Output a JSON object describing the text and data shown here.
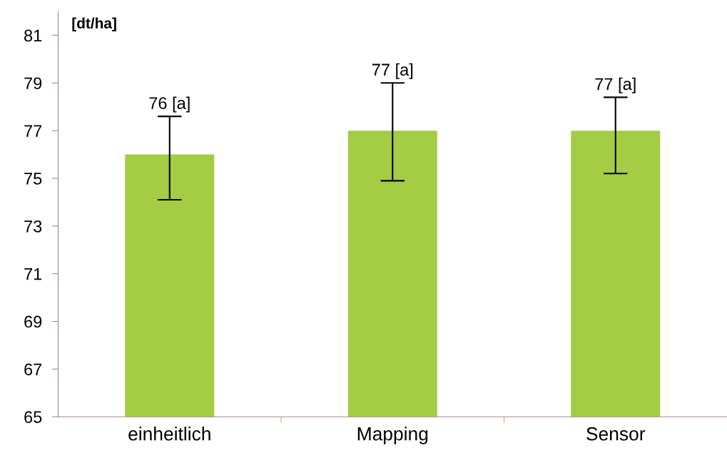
{
  "chart_data": {
    "type": "bar",
    "ylabel": "[dt/ha]",
    "categories": [
      "einheitlich",
      "Mapping",
      "Sensor"
    ],
    "values": [
      76,
      77,
      77
    ],
    "color": "#a4cc44",
    "errors": [
      [
        74.1,
        77.6
      ],
      [
        74.9,
        79.0
      ],
      [
        75.2,
        78.4
      ]
    ],
    "value_labels": [
      "76 [a]",
      "77 [a]",
      "77 [a]"
    ],
    "ylim": [
      65,
      82
    ],
    "yticks": [
      65,
      67,
      69,
      71,
      73,
      75,
      77,
      79,
      81
    ],
    "grid": false,
    "legend": false
  }
}
